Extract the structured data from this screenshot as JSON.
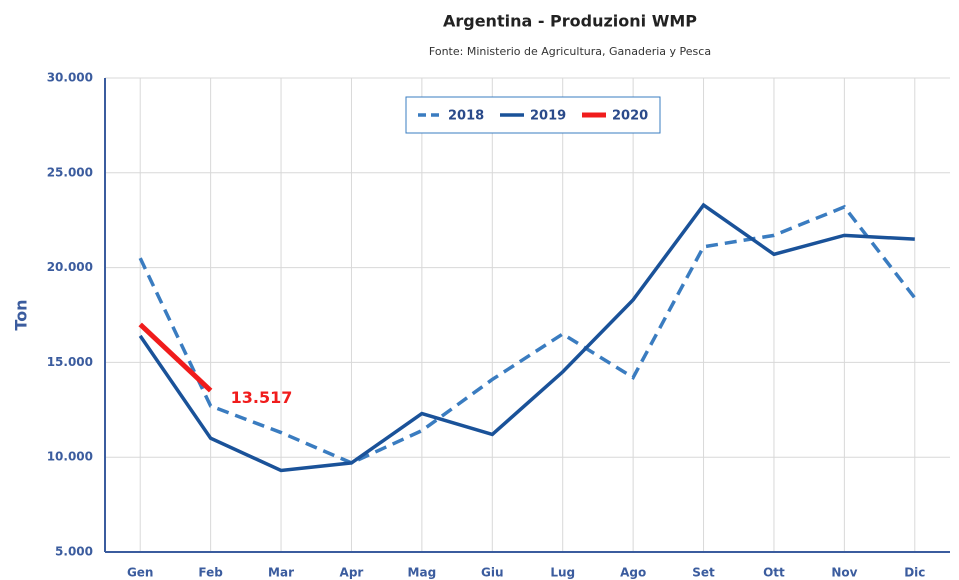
{
  "chart_data": {
    "type": "line",
    "title": "Argentina - Produzioni WMP",
    "subtitle": "Fonte: Ministerio de Agricultura, Ganaderia y Pesca",
    "y_label": "Ton",
    "categories": [
      "Gen",
      "Feb",
      "Mar",
      "Apr",
      "Mag",
      "Giu",
      "Lug",
      "Ago",
      "Set",
      "Ott",
      "Nov",
      "Dic"
    ],
    "series": [
      {
        "name": "2018",
        "color": "#3a7cc0",
        "dashed": true,
        "values": [
          20500,
          12700,
          11300,
          9700,
          11400,
          14100,
          16500,
          14200,
          21100,
          21700,
          23200,
          18400
        ]
      },
      {
        "name": "2019",
        "color": "#1a5299",
        "dashed": false,
        "values": [
          16400,
          11000,
          9300,
          9700,
          12300,
          11200,
          14500,
          18300,
          23300,
          20700,
          21700,
          21500
        ]
      },
      {
        "name": "2020",
        "color": "#f01c1c",
        "dashed": false,
        "values": [
          17000,
          13517,
          null,
          null,
          null,
          null,
          null,
          null,
          null,
          null,
          null,
          null
        ],
        "value_labels": [
          null,
          "13.517",
          null,
          null,
          null,
          null,
          null,
          null,
          null,
          null,
          null,
          null
        ]
      }
    ],
    "ylim": [
      5000,
      30000
    ],
    "yticks": [
      {
        "value": 5000,
        "label": "5.000"
      },
      {
        "value": 10000,
        "label": "10.000"
      },
      {
        "value": 15000,
        "label": "15.000"
      },
      {
        "value": 20000,
        "label": "20.000"
      },
      {
        "value": 25000,
        "label": "25.000"
      },
      {
        "value": 30000,
        "label": "30.000"
      }
    ],
    "grid": true,
    "legend": "top"
  }
}
